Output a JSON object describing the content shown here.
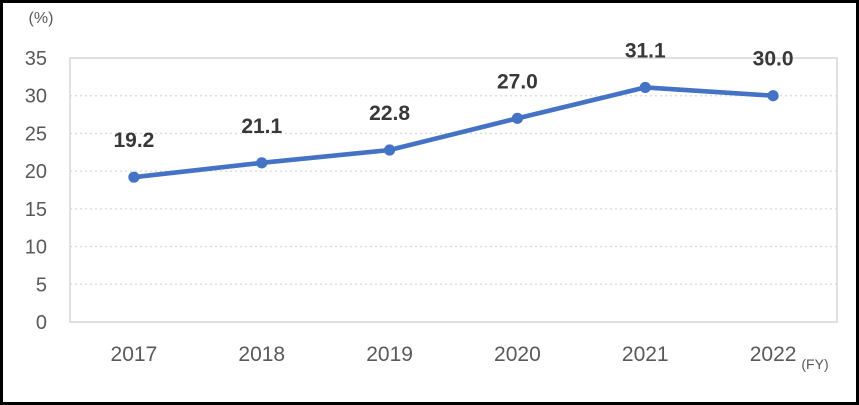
{
  "figure": {
    "unit_label": "(%)",
    "axis_suffix_label": "(FY)"
  },
  "chart_data": {
    "type": "line",
    "categories": [
      "2017",
      "2018",
      "2019",
      "2020",
      "2021",
      "2022"
    ],
    "series": [
      {
        "name": "percentage",
        "values": [
          19.2,
          21.1,
          22.8,
          27.0,
          31.1,
          30.0
        ]
      }
    ],
    "data_labels": [
      "19.2",
      "21.1",
      "22.8",
      "27.0",
      "31.1",
      "30.0"
    ],
    "ylabel": "(%)",
    "xlabel": "(FY)",
    "ylim": [
      0,
      35
    ],
    "yticks": [
      0,
      5,
      10,
      15,
      20,
      25,
      30,
      35
    ],
    "grid": "horizontal-dotted",
    "legend": "none",
    "colors": {
      "line": "#4472C4",
      "marker": "#4472C4",
      "data_label": "#383838",
      "axis_label": "#595959",
      "grid_line": "#D9D9D9",
      "plot_border": "#D9D9D9",
      "frame_border": "#000000",
      "background": "#FFFFFF"
    }
  }
}
